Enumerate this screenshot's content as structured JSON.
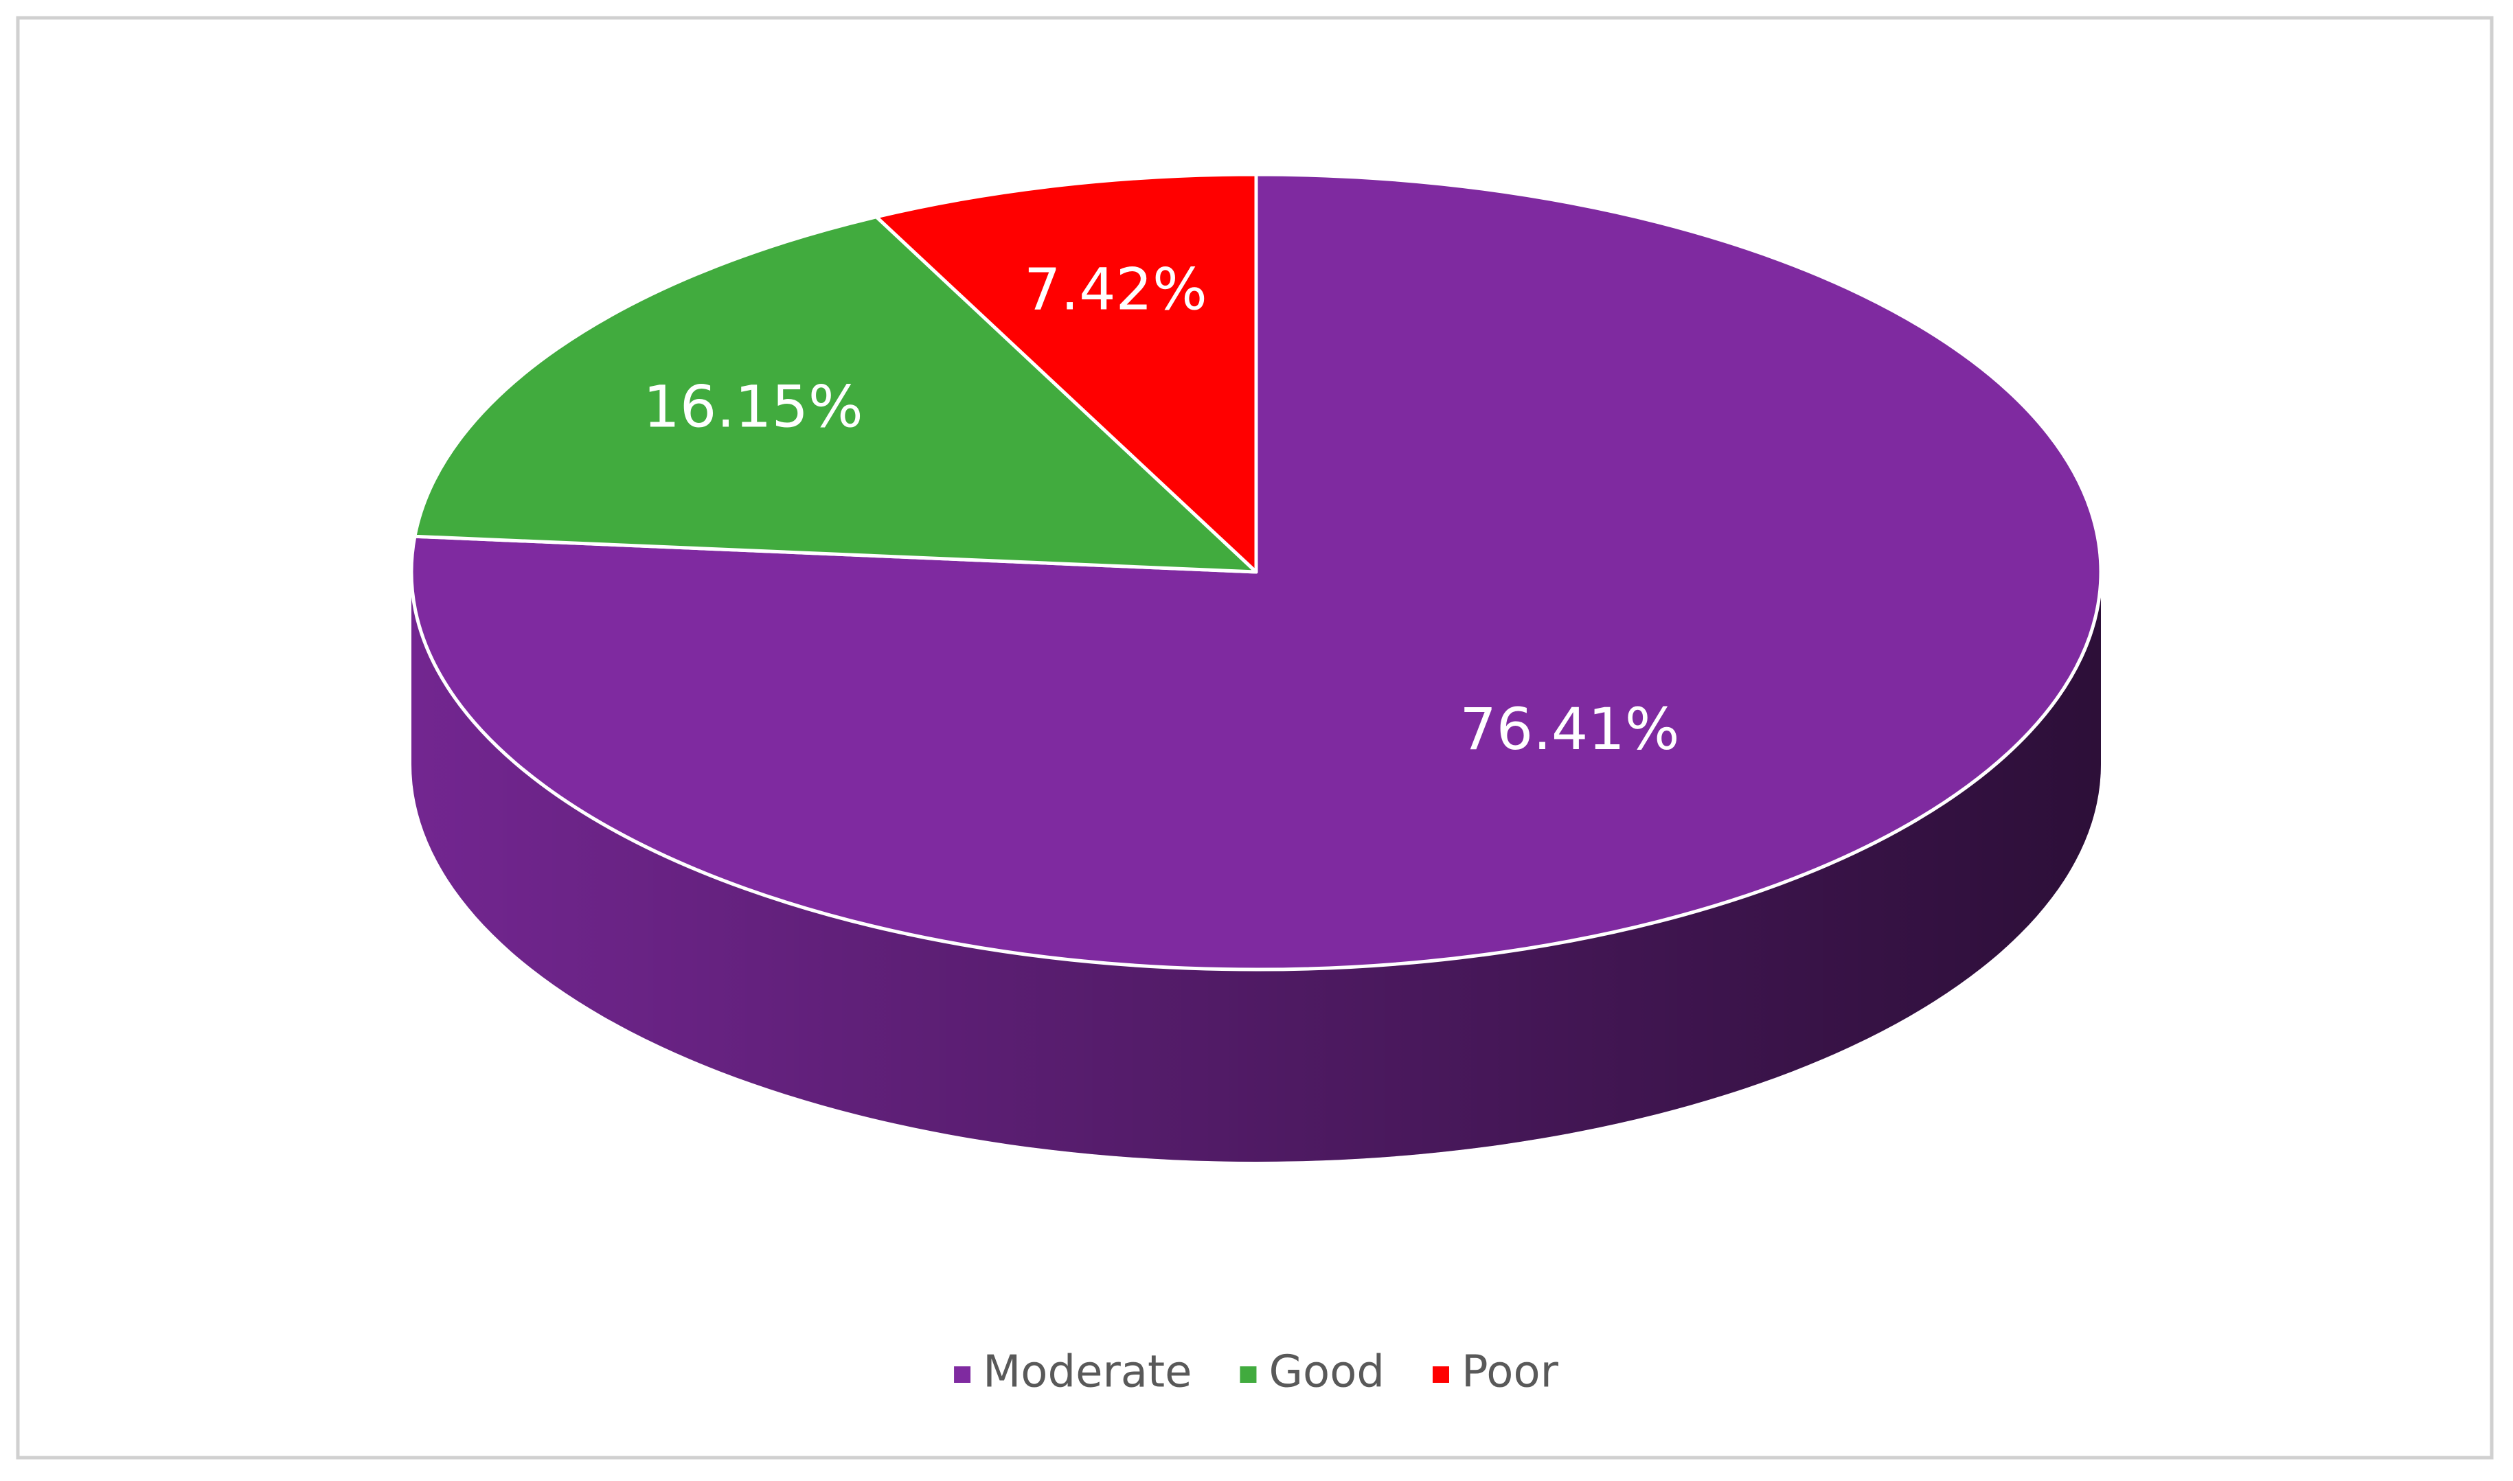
{
  "chart_data": {
    "type": "pie3d",
    "categories": [
      "Moderate",
      "Good",
      "Poor"
    ],
    "values": [
      76.41,
      16.15,
      7.42
    ],
    "value_labels": [
      "76.41%",
      "16.15%",
      "7.42%"
    ],
    "colors": [
      "#7f2aa0",
      "#41ab3e",
      "#ff0000"
    ],
    "legend": "bottom"
  }
}
